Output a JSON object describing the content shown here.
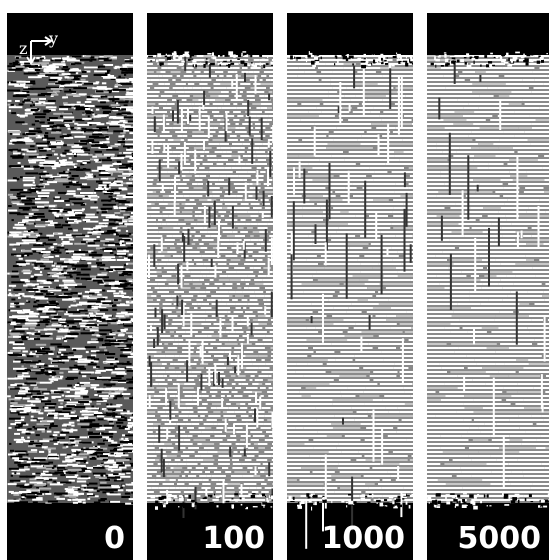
{
  "axes": {
    "z": "z",
    "y": "y"
  },
  "panels": [
    {
      "label": "0"
    },
    {
      "label": "100"
    },
    {
      "label": "1000"
    },
    {
      "label": "5000"
    }
  ]
}
